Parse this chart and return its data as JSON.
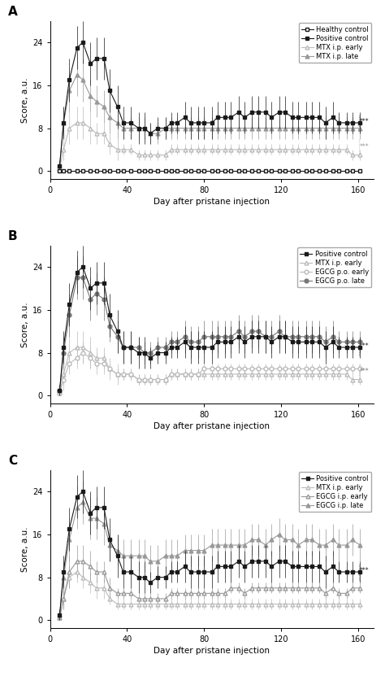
{
  "ylabel": "Score, a.u.",
  "xlabel": "Day after pristane injection",
  "ylim": [
    -1.5,
    28
  ],
  "yticks": [
    0,
    8,
    16,
    24
  ],
  "xlim": [
    0,
    168
  ],
  "xticks": [
    0,
    40,
    80,
    120,
    160
  ],
  "days": [
    5,
    7,
    10,
    14,
    17,
    21,
    24,
    28,
    31,
    35,
    38,
    42,
    46,
    49,
    52,
    56,
    60,
    63,
    66,
    70,
    73,
    77,
    80,
    84,
    87,
    91,
    94,
    98,
    101,
    105,
    108,
    112,
    115,
    119,
    122,
    126,
    129,
    133,
    136,
    140,
    143,
    147,
    150,
    154,
    157,
    161
  ],
  "A_healthy_y": [
    0,
    0,
    0,
    0,
    0,
    0,
    0,
    0,
    0,
    0,
    0,
    0,
    0,
    0,
    0,
    0,
    0,
    0,
    0,
    0,
    0,
    0,
    0,
    0,
    0,
    0,
    0,
    0,
    0,
    0,
    0,
    0,
    0,
    0,
    0,
    0,
    0,
    0,
    0,
    0,
    0,
    0,
    0,
    0,
    0,
    0
  ],
  "A_healthy_err": [
    0.3,
    0.3,
    0.3,
    0.3,
    0.3,
    0.3,
    0.3,
    0.3,
    0.3,
    0.3,
    0.3,
    0.3,
    0.3,
    0.3,
    0.3,
    0.3,
    0.3,
    0.3,
    0.3,
    0.3,
    0.3,
    0.3,
    0.3,
    0.3,
    0.3,
    0.3,
    0.3,
    0.3,
    0.3,
    0.3,
    0.3,
    0.3,
    0.3,
    0.3,
    0.3,
    0.3,
    0.3,
    0.3,
    0.3,
    0.3,
    0.3,
    0.3,
    0.3,
    0.3,
    0.3,
    0.3
  ],
  "A_pos_y": [
    1,
    9,
    17,
    23,
    24,
    20,
    21,
    21,
    15,
    12,
    9,
    9,
    8,
    8,
    7,
    8,
    8,
    9,
    9,
    10,
    9,
    9,
    9,
    9,
    10,
    10,
    10,
    11,
    10,
    11,
    11,
    11,
    10,
    11,
    11,
    10,
    10,
    10,
    10,
    10,
    9,
    10,
    9,
    9,
    9,
    9
  ],
  "A_pos_err": [
    1,
    3,
    4,
    4,
    4,
    4,
    4,
    4,
    4,
    4,
    3,
    3,
    3,
    3,
    2,
    2,
    2,
    2,
    2,
    3,
    3,
    3,
    3,
    3,
    3,
    3,
    3,
    3,
    3,
    3,
    3,
    3,
    3,
    3,
    3,
    3,
    3,
    3,
    3,
    3,
    3,
    3,
    2,
    2,
    2,
    2
  ],
  "A_mtx_early_y": [
    0.5,
    4,
    8,
    9,
    9,
    8,
    7,
    7,
    5,
    4,
    4,
    4,
    3,
    3,
    3,
    3,
    3,
    4,
    4,
    4,
    4,
    4,
    4,
    4,
    4,
    4,
    4,
    4,
    4,
    4,
    4,
    4,
    4,
    4,
    4,
    4,
    4,
    4,
    4,
    4,
    4,
    4,
    4,
    4,
    3,
    3
  ],
  "A_mtx_early_err": [
    0.5,
    2,
    3,
    3,
    3,
    3,
    2,
    2,
    2,
    2,
    1,
    1,
    1,
    1,
    1,
    1,
    1,
    1,
    1,
    1,
    1,
    1,
    1,
    1,
    1,
    1,
    1,
    1,
    1,
    1,
    1,
    1,
    1,
    1,
    1,
    1,
    1,
    1,
    1,
    1,
    1,
    1,
    1,
    1,
    1,
    1
  ],
  "A_mtx_late_y": [
    1,
    9,
    15,
    18,
    17,
    14,
    13,
    12,
    10,
    9,
    8,
    8,
    8,
    8,
    7,
    7,
    8,
    8,
    8,
    8,
    8,
    8,
    8,
    8,
    8,
    8,
    8,
    8,
    8,
    8,
    8,
    8,
    8,
    8,
    8,
    8,
    8,
    8,
    8,
    8,
    8,
    8,
    8,
    8,
    8,
    8
  ],
  "A_mtx_late_err": [
    1,
    3,
    4,
    4,
    4,
    3,
    3,
    3,
    3,
    3,
    2,
    2,
    2,
    2,
    2,
    2,
    2,
    2,
    2,
    2,
    2,
    2,
    2,
    2,
    2,
    2,
    2,
    2,
    2,
    2,
    2,
    2,
    2,
    2,
    2,
    2,
    2,
    2,
    2,
    2,
    2,
    2,
    2,
    2,
    2,
    2
  ],
  "B_pos_y": [
    1,
    9,
    17,
    23,
    24,
    20,
    21,
    21,
    15,
    12,
    9,
    9,
    8,
    8,
    7,
    8,
    8,
    9,
    9,
    10,
    9,
    9,
    9,
    9,
    10,
    10,
    10,
    11,
    10,
    11,
    11,
    11,
    10,
    11,
    11,
    10,
    10,
    10,
    10,
    10,
    9,
    10,
    9,
    9,
    9,
    9
  ],
  "B_pos_err": [
    1,
    3,
    4,
    4,
    4,
    4,
    4,
    4,
    4,
    4,
    3,
    3,
    3,
    3,
    2,
    2,
    2,
    2,
    2,
    3,
    3,
    3,
    3,
    3,
    3,
    3,
    3,
    3,
    3,
    3,
    3,
    3,
    3,
    3,
    3,
    3,
    3,
    3,
    3,
    3,
    3,
    3,
    2,
    2,
    2,
    2
  ],
  "B_mtx_early_y": [
    0.5,
    4,
    8,
    9,
    9,
    8,
    7,
    7,
    5,
    4,
    4,
    4,
    3,
    3,
    3,
    3,
    3,
    4,
    4,
    4,
    4,
    4,
    4,
    4,
    4,
    4,
    4,
    4,
    4,
    4,
    4,
    4,
    4,
    4,
    4,
    4,
    4,
    4,
    4,
    4,
    4,
    4,
    4,
    4,
    3,
    3
  ],
  "B_mtx_early_err": [
    0.5,
    2,
    3,
    3,
    3,
    3,
    2,
    2,
    2,
    2,
    1,
    1,
    1,
    1,
    1,
    1,
    1,
    1,
    1,
    1,
    1,
    1,
    1,
    1,
    1,
    1,
    1,
    1,
    1,
    1,
    1,
    1,
    1,
    1,
    1,
    1,
    1,
    1,
    1,
    1,
    1,
    1,
    1,
    1,
    1,
    1
  ],
  "B_egcg_po_early_y": [
    0.5,
    3,
    6,
    7,
    8,
    7,
    6,
    6,
    5,
    4,
    4,
    4,
    3,
    3,
    3,
    3,
    3,
    4,
    4,
    4,
    4,
    4,
    5,
    5,
    5,
    5,
    5,
    5,
    5,
    5,
    5,
    5,
    5,
    5,
    5,
    5,
    5,
    5,
    5,
    5,
    5,
    5,
    5,
    5,
    5,
    5
  ],
  "B_egcg_po_early_err": [
    0.5,
    2,
    2,
    2,
    2,
    2,
    2,
    2,
    1,
    1,
    1,
    1,
    1,
    1,
    1,
    1,
    1,
    1,
    1,
    1,
    1,
    1,
    1,
    1,
    1,
    1,
    1,
    1,
    1,
    1,
    1,
    1,
    1,
    1,
    1,
    1,
    1,
    1,
    1,
    1,
    1,
    1,
    1,
    1,
    1,
    1
  ],
  "B_egcg_po_late_y": [
    1,
    8,
    15,
    22,
    22,
    18,
    19,
    18,
    13,
    11,
    9,
    9,
    9,
    8,
    8,
    9,
    9,
    10,
    10,
    11,
    10,
    10,
    11,
    11,
    11,
    11,
    11,
    12,
    11,
    12,
    12,
    11,
    11,
    12,
    11,
    11,
    11,
    11,
    11,
    11,
    10,
    11,
    10,
    10,
    10,
    10
  ],
  "B_egcg_po_late_err": [
    1,
    3,
    4,
    4,
    4,
    4,
    4,
    4,
    3,
    3,
    3,
    3,
    2,
    2,
    2,
    2,
    2,
    2,
    2,
    3,
    3,
    3,
    3,
    3,
    3,
    3,
    3,
    3,
    3,
    3,
    3,
    3,
    3,
    3,
    3,
    3,
    3,
    3,
    3,
    3,
    3,
    3,
    2,
    2,
    2,
    2
  ],
  "C_pos_y": [
    1,
    9,
    17,
    23,
    24,
    20,
    21,
    21,
    15,
    12,
    9,
    9,
    8,
    8,
    7,
    8,
    8,
    9,
    9,
    10,
    9,
    9,
    9,
    9,
    10,
    10,
    10,
    11,
    10,
    11,
    11,
    11,
    10,
    11,
    11,
    10,
    10,
    10,
    10,
    10,
    9,
    10,
    9,
    9,
    9,
    9
  ],
  "C_pos_err": [
    1,
    3,
    4,
    4,
    4,
    4,
    4,
    4,
    4,
    4,
    3,
    3,
    3,
    3,
    2,
    2,
    2,
    2,
    2,
    3,
    3,
    3,
    3,
    3,
    3,
    3,
    3,
    3,
    3,
    3,
    3,
    3,
    3,
    3,
    3,
    3,
    3,
    3,
    3,
    3,
    3,
    3,
    2,
    2,
    2,
    2
  ],
  "C_mtx_early_y": [
    0.5,
    4,
    8,
    9,
    8,
    7,
    6,
    6,
    4,
    3,
    3,
    3,
    3,
    3,
    3,
    3,
    3,
    3,
    3,
    3,
    3,
    3,
    3,
    3,
    3,
    3,
    3,
    3,
    3,
    3,
    3,
    3,
    3,
    3,
    3,
    3,
    3,
    3,
    3,
    3,
    3,
    3,
    3,
    3,
    3,
    3
  ],
  "C_mtx_early_err": [
    0.5,
    2,
    2,
    2,
    2,
    2,
    2,
    2,
    1,
    1,
    1,
    1,
    1,
    1,
    1,
    1,
    1,
    1,
    1,
    1,
    1,
    1,
    1,
    1,
    1,
    1,
    1,
    1,
    1,
    1,
    1,
    1,
    1,
    1,
    1,
    1,
    1,
    1,
    1,
    1,
    1,
    1,
    1,
    1,
    1,
    1
  ],
  "C_egcg_ip_early_y": [
    0.5,
    4,
    9,
    11,
    11,
    10,
    9,
    9,
    6,
    5,
    5,
    5,
    4,
    4,
    4,
    4,
    4,
    5,
    5,
    5,
    5,
    5,
    5,
    5,
    5,
    5,
    6,
    6,
    5,
    6,
    6,
    6,
    6,
    6,
    6,
    6,
    6,
    6,
    6,
    6,
    5,
    6,
    5,
    5,
    6,
    6
  ],
  "C_egcg_ip_early_err": [
    0.5,
    2,
    3,
    3,
    3,
    3,
    2,
    2,
    2,
    1,
    1,
    1,
    1,
    1,
    1,
    1,
    1,
    1,
    1,
    1,
    1,
    1,
    1,
    1,
    1,
    1,
    1,
    1,
    1,
    1,
    1,
    1,
    1,
    1,
    1,
    1,
    1,
    1,
    1,
    1,
    1,
    1,
    1,
    1,
    1,
    1
  ],
  "C_egcg_ip_late_y": [
    1,
    8,
    15,
    21,
    22,
    19,
    19,
    18,
    14,
    13,
    12,
    12,
    12,
    12,
    11,
    11,
    12,
    12,
    12,
    13,
    13,
    13,
    13,
    14,
    14,
    14,
    14,
    14,
    14,
    15,
    15,
    14,
    15,
    16,
    15,
    15,
    14,
    15,
    15,
    14,
    14,
    15,
    14,
    14,
    15,
    14
  ],
  "C_egcg_ip_late_err": [
    1,
    3,
    4,
    4,
    4,
    4,
    4,
    4,
    3,
    3,
    3,
    3,
    3,
    3,
    3,
    3,
    3,
    3,
    3,
    3,
    3,
    3,
    3,
    3,
    3,
    3,
    3,
    3,
    3,
    3,
    3,
    3,
    3,
    3,
    3,
    3,
    3,
    3,
    3,
    3,
    3,
    3,
    3,
    3,
    3,
    3
  ],
  "col_black": "#1a1a1a",
  "col_gray1": "#999999",
  "col_gray2": "#bbbbbb",
  "col_gray3": "#777777"
}
